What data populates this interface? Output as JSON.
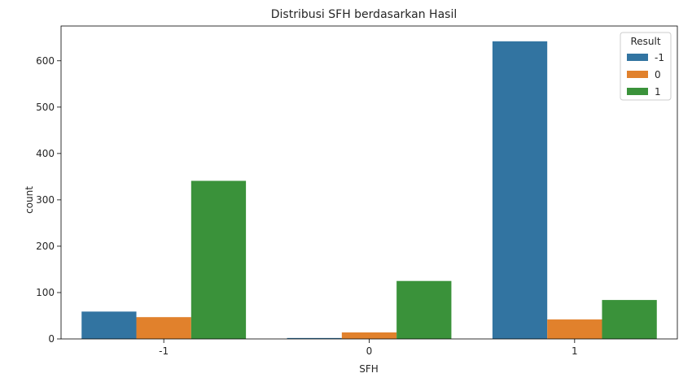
{
  "chart_data": {
    "type": "bar",
    "title": "Distribusi SFH berdasarkan Hasil",
    "xlabel": "SFH",
    "ylabel": "count",
    "categories": [
      "-1",
      "0",
      "1"
    ],
    "series": [
      {
        "name": "-1",
        "color": "#3274a1",
        "values": [
          59,
          2,
          642
        ]
      },
      {
        "name": "0",
        "color": "#e1812c",
        "values": [
          47,
          14,
          42
        ]
      },
      {
        "name": "1",
        "color": "#3a923a",
        "values": [
          341,
          125,
          84
        ]
      }
    ],
    "ylim": [
      0,
      675
    ],
    "yticks": [
      0,
      100,
      200,
      300,
      400,
      500,
      600
    ],
    "legend": {
      "title": "Result",
      "placement": "top-right"
    },
    "grid": false
  }
}
